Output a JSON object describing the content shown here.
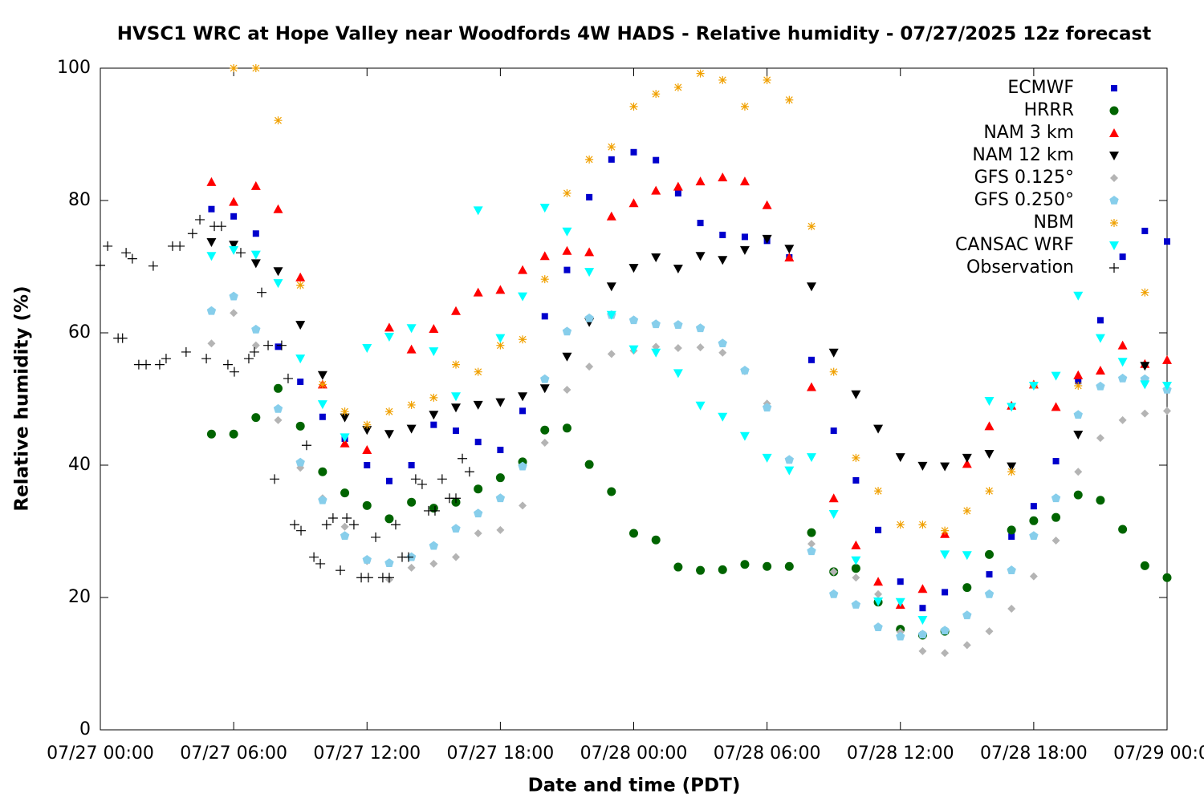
{
  "chart_data": {
    "type": "scatter",
    "title": "HVSC1 WRC at Hope Valley near Woodfords 4W HADS - Relative humidity - 07/27/2025 12z forecast",
    "xlabel": "Date and time (PDT)",
    "ylabel": "Relative humidity (%)",
    "xlim": [
      0,
      48
    ],
    "xticks": [
      {
        "value": 0,
        "label": "07/27 00:00"
      },
      {
        "value": 6,
        "label": "07/27 06:00"
      },
      {
        "value": 12,
        "label": "07/27 12:00"
      },
      {
        "value": 18,
        "label": "07/27 18:00"
      },
      {
        "value": 24,
        "label": "07/28 00:00"
      },
      {
        "value": 30,
        "label": "07/28 06:00"
      },
      {
        "value": 36,
        "label": "07/28 12:00"
      },
      {
        "value": 42,
        "label": "07/28 18:00"
      },
      {
        "value": 48,
        "label": "07/29 00:00"
      }
    ],
    "ylim": [
      0,
      100
    ],
    "yticks": [
      0,
      20,
      40,
      60,
      80,
      100
    ],
    "grid": false,
    "legend": "top-right",
    "x": [
      5,
      6,
      7,
      8,
      9,
      10,
      11,
      12,
      13,
      14,
      15,
      16,
      17,
      18,
      19,
      20,
      21,
      22,
      23,
      24,
      25,
      26,
      27,
      28,
      29,
      30,
      31,
      32,
      33,
      34,
      35,
      36,
      37,
      38,
      39,
      40,
      41,
      42,
      43,
      44,
      45,
      46,
      47,
      48
    ],
    "series": [
      {
        "name": "ECMWF",
        "color": "#0000cc",
        "marker": "square",
        "values": [
          78.7,
          77.6,
          75.0,
          57.9,
          52.6,
          47.3,
          44.0,
          40.0,
          37.6,
          40.0,
          46.1,
          45.2,
          43.5,
          42.3,
          48.2,
          62.5,
          69.5,
          80.5,
          86.2,
          87.3,
          86.1,
          81.1,
          76.6,
          74.8,
          74.5,
          73.9,
          71.4,
          55.9,
          45.2,
          37.7,
          30.2,
          22.4,
          18.4,
          20.8,
          21.5,
          23.5,
          29.2,
          33.8,
          40.6,
          52.7,
          61.9,
          71.5,
          75.4,
          73.8
        ]
      },
      {
        "name": "HRRR",
        "color": "#006400",
        "marker": "circle",
        "values": [
          44.7,
          44.7,
          47.2,
          51.6,
          45.9,
          39.0,
          35.8,
          33.9,
          31.9,
          34.4,
          33.5,
          34.4,
          36.4,
          38.1,
          40.5,
          45.3,
          45.6,
          40.1,
          36.0,
          29.7,
          28.7,
          24.6,
          24.1,
          24.2,
          25.0,
          24.7,
          24.7,
          29.8,
          23.9,
          24.4,
          19.3,
          15.2,
          14.3,
          14.9,
          21.5,
          26.5,
          30.2,
          31.6,
          32.1,
          35.5,
          34.7,
          30.3,
          24.8,
          23.0
        ]
      },
      {
        "name": "NAM 3 km",
        "color": "#ff0000",
        "marker": "triangle",
        "values": [
          82.8,
          79.8,
          82.2,
          78.7,
          68.4,
          52.2,
          43.3,
          42.3,
          60.8,
          57.5,
          60.6,
          63.3,
          66.1,
          66.5,
          69.5,
          71.6,
          72.4,
          72.2,
          77.6,
          79.6,
          81.5,
          82.1,
          82.9,
          83.5,
          82.9,
          79.3,
          71.4,
          51.8,
          35.0,
          27.9,
          22.4,
          18.9,
          21.3,
          29.6,
          40.2,
          45.9,
          49.0,
          52.2,
          48.8,
          53.6,
          54.3,
          58.1,
          55.3,
          55.9
        ]
      },
      {
        "name": "NAM 12 km",
        "color": "#000000",
        "marker": "tri-down",
        "values": [
          73.7,
          73.3,
          70.5,
          69.3,
          61.2,
          53.6,
          47.2,
          45.3,
          44.7,
          45.5,
          47.6,
          48.7,
          49.1,
          49.5,
          50.4,
          51.6,
          56.4,
          61.6,
          67.0,
          69.8,
          71.4,
          69.7,
          71.6,
          71.0,
          72.5,
          74.2,
          72.7,
          67.0,
          57.0,
          50.7,
          45.5,
          41.2,
          39.9,
          39.8,
          41.1,
          41.7,
          39.8,
          null,
          null,
          44.6,
          null,
          null,
          55.0,
          null
        ]
      },
      {
        "name": "GFS 0.125°",
        "color": "#b4b4b4",
        "marker": "diamond",
        "values": [
          58.4,
          63.0,
          58.1,
          46.8,
          39.6,
          35.0,
          30.7,
          25.5,
          22.7,
          24.5,
          25.1,
          26.1,
          29.7,
          30.2,
          33.9,
          43.4,
          51.4,
          54.9,
          56.8,
          57.3,
          57.9,
          57.7,
          57.8,
          57.0,
          54.2,
          49.3,
          40.8,
          28.1,
          23.9,
          23.0,
          20.5,
          14.8,
          11.9,
          11.6,
          12.8,
          14.9,
          18.3,
          23.2,
          28.6,
          39.0,
          44.1,
          46.8,
          47.8,
          48.2
        ]
      },
      {
        "name": "GFS 0.250°",
        "color": "#87ceeb",
        "marker": "pentagon",
        "values": [
          63.3,
          65.5,
          60.5,
          48.5,
          40.4,
          34.7,
          29.3,
          25.7,
          25.2,
          26.1,
          27.8,
          30.4,
          32.7,
          35.0,
          39.8,
          53.0,
          60.2,
          62.2,
          62.7,
          61.9,
          61.3,
          61.2,
          60.7,
          58.4,
          54.3,
          48.7,
          40.8,
          27.0,
          20.5,
          18.9,
          15.5,
          14.1,
          14.4,
          15.0,
          17.3,
          20.5,
          24.1,
          29.3,
          35.0,
          47.6,
          51.9,
          53.1,
          53.0,
          51.4
        ]
      },
      {
        "name": "NBM",
        "color": "#f0a000",
        "marker": "star",
        "values": [
          null,
          100,
          100,
          92.1,
          67.2,
          52.2,
          48.1,
          46.1,
          48.1,
          49.1,
          50.2,
          55.2,
          54.1,
          58.1,
          59.0,
          68.1,
          81.1,
          86.2,
          88.1,
          94.2,
          96.1,
          97.1,
          99.2,
          98.2,
          94.2,
          98.2,
          95.2,
          76.1,
          54.1,
          41.1,
          36.1,
          31.0,
          31.0,
          30.1,
          33.1,
          36.1,
          39.0,
          52.1,
          null,
          52.0,
          null,
          null,
          66.1,
          null
        ]
      },
      {
        "name": "CANSAC WRF",
        "color": "#00ffff",
        "marker": "tri-down",
        "values": [
          71.6,
          72.5,
          71.8,
          67.5,
          56.1,
          49.2,
          44.2,
          57.7,
          59.4,
          60.7,
          57.2,
          50.4,
          78.5,
          59.2,
          65.5,
          78.9,
          75.3,
          69.2,
          62.7,
          57.5,
          57.0,
          53.9,
          49.0,
          47.3,
          44.4,
          41.1,
          39.2,
          41.2,
          32.6,
          25.6,
          19.4,
          19.3,
          16.6,
          26.5,
          26.4,
          49.7,
          48.8,
          52.0,
          53.5,
          65.6,
          59.2,
          55.6,
          52.2,
          52.0
        ]
      },
      {
        "name": "Observation",
        "color": "#000000",
        "marker": "plus",
        "x": [
          0,
          0.33,
          0.8,
          1.0,
          1.16,
          1.44,
          1.73,
          2.06,
          2.38,
          2.67,
          2.96,
          3.25,
          3.58,
          3.86,
          4.15,
          4.48,
          4.77,
          5.13,
          5.45,
          5.74,
          6.03,
          6.32,
          6.68,
          6.93,
          7.26,
          7.55,
          7.84,
          8.16,
          8.45,
          8.74,
          9.03,
          9.28,
          9.61,
          9.9,
          10.18,
          10.47,
          10.8,
          11.09,
          11.41,
          11.74,
          12.06,
          12.39,
          12.71,
          13.0,
          13.29,
          13.58,
          13.87,
          14.19,
          14.48,
          14.77,
          15.06,
          15.38,
          15.71,
          16.0,
          16.29,
          16.61
        ],
        "values": [
          70.2,
          73.1,
          59.2,
          59.2,
          72.1,
          71.2,
          55.2,
          55.2,
          70.1,
          55.2,
          56.1,
          73.1,
          73.1,
          57.1,
          75.0,
          77.1,
          56.1,
          76.1,
          76.1,
          55.2,
          54.1,
          72.1,
          56.1,
          57.1,
          66.1,
          58.1,
          37.9,
          58.1,
          53.1,
          31.0,
          30.1,
          43.0,
          26.1,
          25.1,
          31.0,
          32.0,
          24.1,
          32.0,
          31.0,
          23.0,
          23.0,
          29.1,
          23.0,
          23.0,
          31.0,
          26.1,
          26.1,
          37.9,
          37.1,
          33.1,
          33.1,
          37.9,
          35.0,
          35.0,
          41.0,
          39.0
        ]
      }
    ]
  }
}
